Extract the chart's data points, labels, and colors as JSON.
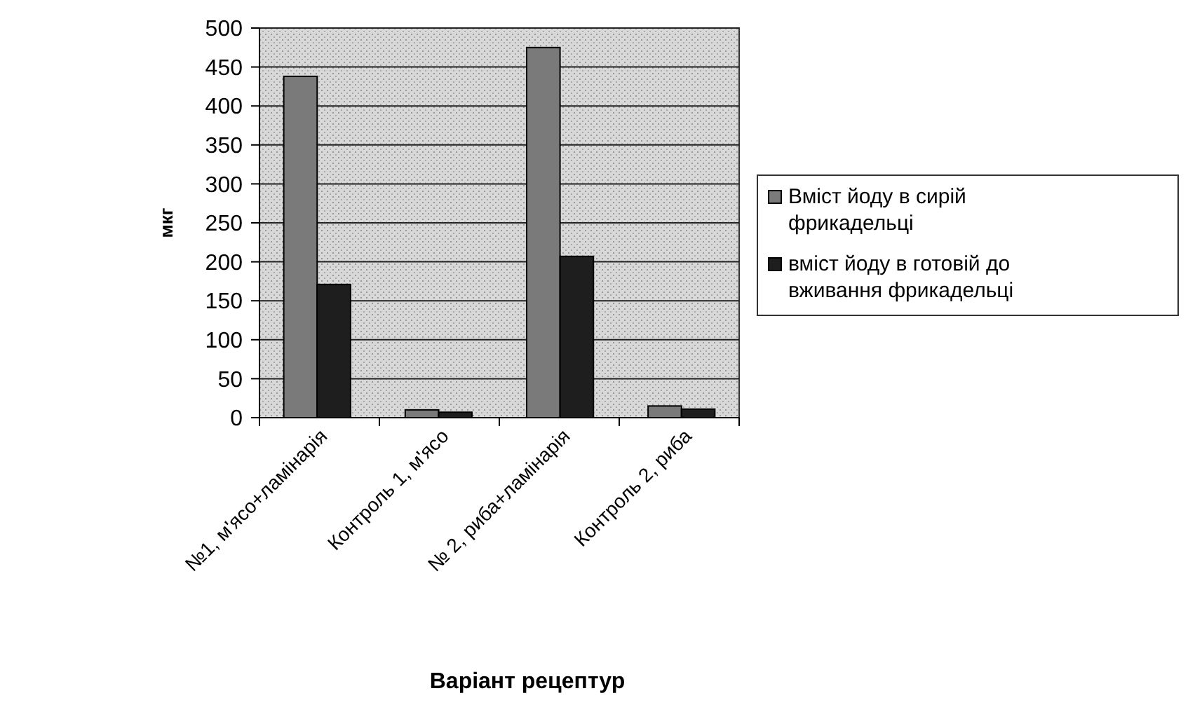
{
  "chart_data": {
    "type": "bar",
    "xlabel": "Варіант рецептур",
    "ylabel": "мкг",
    "categories": [
      "№1, м'ясо+ламінарія",
      "Контроль 1, м'ясо",
      "№ 2, риба+ламінарія",
      "Контроль 2, риба"
    ],
    "series": [
      {
        "name": "Вміст йоду в сирій фрикадельці",
        "color": "#7a7a7a",
        "values": [
          438,
          10,
          475,
          15
        ]
      },
      {
        "name": "вміст йоду в готовій до вживання фрикадельці",
        "color": "#1e1e1e",
        "values": [
          171,
          7,
          207,
          11
        ]
      }
    ],
    "ylim": [
      0,
      500
    ],
    "yticks": [
      0,
      50,
      100,
      150,
      200,
      250,
      300,
      350,
      400,
      450,
      500
    ],
    "grid": "y",
    "legend": "right"
  }
}
